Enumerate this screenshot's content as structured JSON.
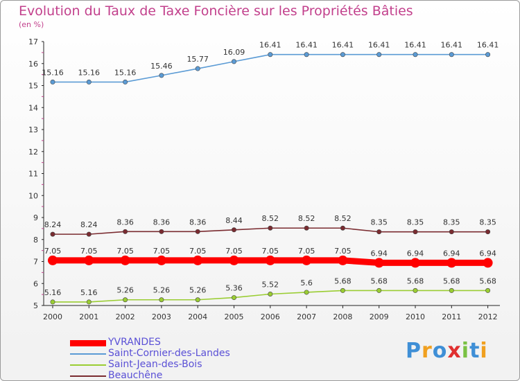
{
  "chart_data": {
    "type": "line",
    "title": "Evolution du Taux de Taxe Foncière sur les Propriétés Bâties",
    "ylabel": "(en %)",
    "xlabel": "",
    "x": [
      "2000",
      "2001",
      "2002",
      "2003",
      "2004",
      "2005",
      "2006",
      "2007",
      "2008",
      "2009",
      "2010",
      "2011",
      "2012"
    ],
    "ylim": [
      5,
      17
    ],
    "yticks": [
      "5",
      "6",
      "7",
      "8",
      "9",
      "10",
      "11",
      "12",
      "13",
      "14",
      "15",
      "16",
      "17"
    ],
    "grid": false,
    "legend_position": "bottom-left",
    "series": [
      {
        "name": "YVRANDES",
        "color": "#ff0000",
        "values": [
          7.05,
          7.05,
          7.05,
          7.05,
          7.05,
          7.05,
          7.05,
          7.05,
          7.05,
          6.94,
          6.94,
          6.94,
          6.94
        ],
        "labels": [
          "7.05",
          "7.05",
          "7.05",
          "7.05",
          "7.05",
          "7.05",
          "7.05",
          "7.05",
          "7.05",
          "6.94",
          "6.94",
          "6.94",
          "6.94"
        ]
      },
      {
        "name": "Saint-Cornier-des-Landes",
        "color": "#5b9bd5",
        "values": [
          15.16,
          15.16,
          15.16,
          15.46,
          15.77,
          16.09,
          16.41,
          16.41,
          16.41,
          16.41,
          16.41,
          16.41,
          16.41
        ],
        "labels": [
          "15.16",
          "15.16",
          "15.16",
          "15.46",
          "15.77",
          "16.09",
          "16.41",
          "16.41",
          "16.41",
          "16.41",
          "16.41",
          "16.41",
          "16.41"
        ]
      },
      {
        "name": "Saint-Jean-des-Bois",
        "color": "#9acd32",
        "values": [
          5.16,
          5.16,
          5.26,
          5.26,
          5.26,
          5.36,
          5.52,
          5.6,
          5.68,
          5.68,
          5.68,
          5.68,
          5.68
        ],
        "labels": [
          "5.16",
          "5.16",
          "5.26",
          "5.26",
          "5.26",
          "5.36",
          "5.52",
          "5.6",
          "5.68",
          "5.68",
          "5.68",
          "5.68",
          "5.68"
        ]
      },
      {
        "name": "Beauchêne",
        "color": "#7a2b30",
        "values": [
          8.24,
          8.24,
          8.36,
          8.36,
          8.36,
          8.44,
          8.52,
          8.52,
          8.52,
          8.35,
          8.35,
          8.35,
          8.35
        ],
        "labels": [
          "8.24",
          "8.24",
          "8.36",
          "8.36",
          "8.36",
          "8.44",
          "8.52",
          "8.52",
          "8.52",
          "8.35",
          "8.35",
          "8.35",
          "8.35"
        ]
      }
    ]
  },
  "brand": {
    "text": "Proxiti",
    "letter_colors": [
      "#3f8fd6",
      "#f0a020",
      "#3f8fd6",
      "#e03030",
      "#7ac143",
      "#3f8fd6",
      "#f0a020"
    ]
  }
}
